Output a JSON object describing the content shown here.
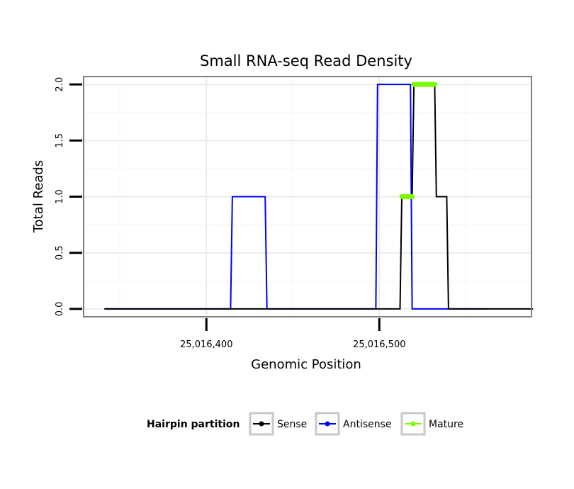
{
  "chart_data": {
    "type": "line",
    "title": "Small RNA-seq Read Density",
    "xlabel": "Genomic Position",
    "ylabel": "Total Reads",
    "xlim": [
      25016329,
      25016588
    ],
    "ylim": [
      -0.07,
      2.07
    ],
    "x_ticks": [
      {
        "value": 25016400,
        "label": "25,016,400"
      },
      {
        "value": 25016500,
        "label": "25,016,500"
      }
    ],
    "y_ticks": [
      {
        "value": 0.0,
        "label": "0.0"
      },
      {
        "value": 0.5,
        "label": "0.5"
      },
      {
        "value": 1.0,
        "label": "1.0"
      },
      {
        "value": 1.5,
        "label": "1.5"
      },
      {
        "value": 2.0,
        "label": "2.0"
      }
    ],
    "grid": true,
    "legend": {
      "title": "Hairpin partition",
      "position": "bottom",
      "entries": [
        {
          "label": "Sense",
          "color": "#000000"
        },
        {
          "label": "Antisense",
          "color": "#0000ff"
        },
        {
          "label": "Mature",
          "color": "#7cfc00"
        }
      ]
    },
    "series": [
      {
        "name": "Antisense",
        "color": "#0000ff",
        "x": [
          25016341,
          25016414,
          25016415,
          25016434,
          25016435,
          25016498,
          25016499,
          25016518,
          25016519,
          25016563
        ],
        "y": [
          0,
          0,
          1,
          1,
          0,
          0,
          2,
          2,
          0,
          0
        ]
      },
      {
        "name": "Sense",
        "color": "#000000",
        "x": [
          25016341,
          25016512,
          25016513,
          25016519,
          25016520,
          25016532,
          25016533,
          25016539,
          25016540,
          25016589
        ],
        "y": [
          0,
          0,
          1,
          1,
          2,
          2,
          1,
          1,
          0,
          0
        ]
      },
      {
        "name": "Mature",
        "color": "#7cfc00",
        "segments": [
          {
            "x": [
              25016513,
              25016519
            ],
            "y": [
              1,
              1
            ]
          },
          {
            "x": [
              25016520,
              25016532
            ],
            "y": [
              2,
              2
            ]
          }
        ]
      }
    ]
  }
}
